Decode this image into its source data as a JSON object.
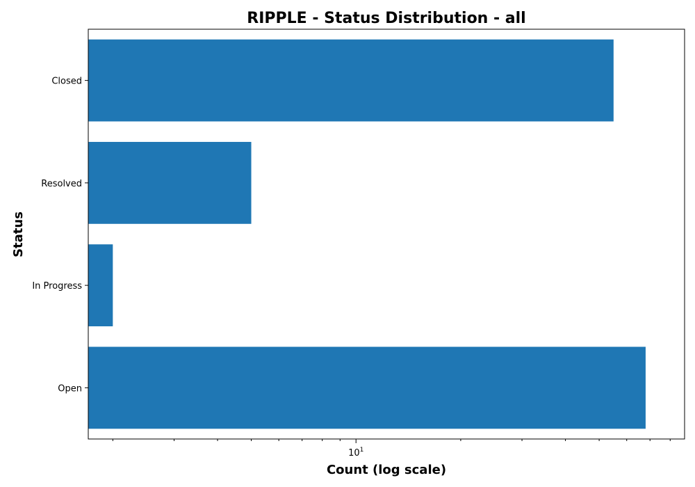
{
  "chart_data": {
    "type": "bar",
    "orientation": "horizontal",
    "title": "RIPPLE - Status Distribution - all",
    "xlabel": "Count (log scale)",
    "ylabel": "Status",
    "x_scale": "log",
    "xlim": [
      1.7,
      88
    ],
    "categories": [
      "Closed",
      "Resolved",
      "In Progress",
      "Open"
    ],
    "values": [
      55,
      5,
      2,
      68
    ],
    "x_major_ticks": [
      {
        "base": "10",
        "exponent": "1",
        "value": 10
      }
    ],
    "x_minor_ticks": [
      2,
      3,
      4,
      5,
      6,
      7,
      8,
      9,
      20,
      30,
      40,
      50,
      60,
      70,
      80
    ],
    "grid": false,
    "bar_color": "#1f77b4"
  }
}
